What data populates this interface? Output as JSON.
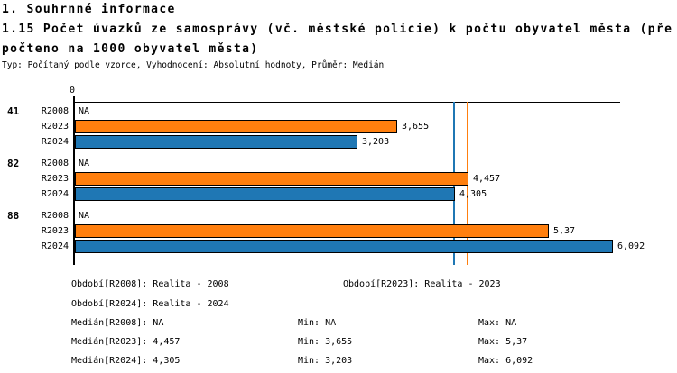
{
  "header": {
    "title": "1. Souhrnné informace",
    "subtitle_line1": "1.15 Počet úvazků ze samosprávy (vč. městské policie) k počtu obyvatel města (pře",
    "subtitle_line2": "počteno na 1000 obyvatel města)",
    "meta": "Typ: Počítaný podle vzorce, Vyhodnocení: Absolutní hodnoty, Průměr: Medián"
  },
  "chart_data": {
    "type": "bar",
    "orientation": "horizontal",
    "title": "1.15 Počet úvazků ze samosprávy (vč. městské policie) k počtu obyvatel města (přepočteno na 1000 obyvatel města)",
    "axis": {
      "origin_tick_label": "0",
      "xlim": [
        0,
        6.2
      ],
      "grid": false
    },
    "colors": {
      "R2023": "#FF7F0E",
      "R2024": "#1F77B4",
      "axis": "#000000"
    },
    "groups": [
      {
        "id": "41",
        "rows": [
          {
            "label": "R2008",
            "value": null,
            "display": "NA"
          },
          {
            "label": "R2023",
            "value": 3.655,
            "display": "3,655"
          },
          {
            "label": "R2024",
            "value": 3.203,
            "display": "3,203"
          }
        ]
      },
      {
        "id": "82",
        "rows": [
          {
            "label": "R2008",
            "value": null,
            "display": "NA"
          },
          {
            "label": "R2023",
            "value": 4.457,
            "display": "4,457"
          },
          {
            "label": "R2024",
            "value": 4.305,
            "display": "4,305"
          }
        ]
      },
      {
        "id": "88",
        "rows": [
          {
            "label": "R2008",
            "value": null,
            "display": "NA"
          },
          {
            "label": "R2023",
            "value": 5.37,
            "display": "5,37"
          },
          {
            "label": "R2024",
            "value": 6.092,
            "display": "6,092"
          }
        ]
      }
    ],
    "median_lines": [
      {
        "series": "R2023",
        "value": 4.457
      },
      {
        "series": "R2024",
        "value": 4.305
      }
    ],
    "stats_numeric": {
      "R2008": {
        "median": null,
        "min": null,
        "max": null
      },
      "R2023": {
        "median": 4.457,
        "min": 3.655,
        "max": 5.37
      },
      "R2024": {
        "median": 4.305,
        "min": 3.203,
        "max": 6.092
      }
    }
  },
  "legend": {
    "obdobi_r2008": "Období[R2008]: Realita - 2008",
    "obdobi_r2023": "Období[R2023]: Realita - 2023",
    "obdobi_r2024": "Období[R2024]: Realita - 2024",
    "median_r2008": "Medián[R2008]: NA",
    "median_r2023": "Medián[R2023]: 4,457",
    "median_r2024": "Medián[R2024]: 4,305",
    "min_r2008": "Min: NA",
    "min_r2023": "Min: 3,655",
    "min_r2024": "Min: 3,203",
    "max_r2008": "Max: NA",
    "max_r2023": "Max: 5,37",
    "max_r2024": "Max: 6,092"
  }
}
